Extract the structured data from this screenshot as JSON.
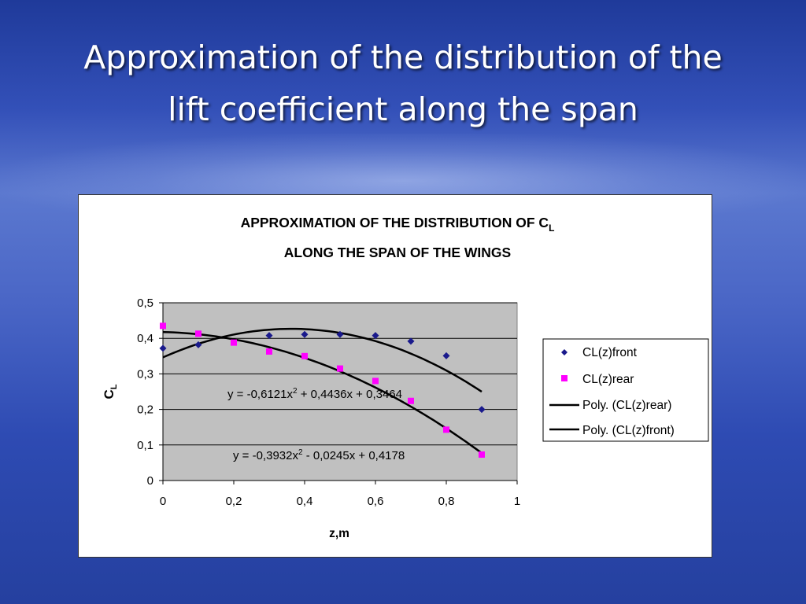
{
  "slide": {
    "title_line1": "Approximation of the distribution of the",
    "title_line2": "lift coefficient along the span"
  },
  "chart_data": {
    "type": "scatter",
    "title_line1": "APPROXIMATION OF THE DISTRIBUTION OF C",
    "title_line1_sub": "L",
    "title_line2": "ALONG THE SPAN OF THE WINGS",
    "xlabel": "z,m",
    "ylabel": "C",
    "ylabel_sub": "L",
    "xlim": [
      0,
      1
    ],
    "ylim": [
      0,
      0.5
    ],
    "x_ticks": [
      "0",
      "0,2",
      "0,4",
      "0,6",
      "0,8",
      "1"
    ],
    "y_ticks": [
      "0",
      "0,1",
      "0,2",
      "0,3",
      "0,4",
      "0,5"
    ],
    "grid": "horizontal",
    "legend_position": "right",
    "series": [
      {
        "name": "CL(z)front",
        "marker": "diamond",
        "color": "#1a1a8c",
        "x": [
          0,
          0.1,
          0.3,
          0.4,
          0.5,
          0.6,
          0.7,
          0.8,
          0.9
        ],
        "y": [
          0.372,
          0.382,
          0.408,
          0.411,
          0.411,
          0.408,
          0.392,
          0.351,
          0.2
        ]
      },
      {
        "name": "CL(z)rear",
        "marker": "square",
        "color": "#ff00ff",
        "x": [
          0,
          0.1,
          0.2,
          0.3,
          0.4,
          0.5,
          0.6,
          0.7,
          0.8,
          0.9
        ],
        "y": [
          0.435,
          0.413,
          0.388,
          0.363,
          0.35,
          0.315,
          0.28,
          0.224,
          0.143,
          0.073
        ]
      }
    ],
    "trendlines": [
      {
        "name": "Poly. (CL(z)rear)",
        "coeffs": [
          -0.3932,
          -0.0245,
          0.4178
        ],
        "x_range": [
          0,
          0.9
        ],
        "color": "#000000"
      },
      {
        "name": "Poly. (CL(z)front)",
        "coeffs": [
          -0.6121,
          0.4436,
          0.3464
        ],
        "x_range": [
          0,
          0.9
        ],
        "color": "#000000"
      }
    ],
    "equations": [
      {
        "text": "y = -0,6121x",
        "sup": "2",
        "rest": " + 0,4436x + 0,3464"
      },
      {
        "text": "y = -0,3932x",
        "sup": "2",
        "rest": " - 0,0245x + 0,4178"
      }
    ],
    "plot_background": "#c0c0c0"
  }
}
